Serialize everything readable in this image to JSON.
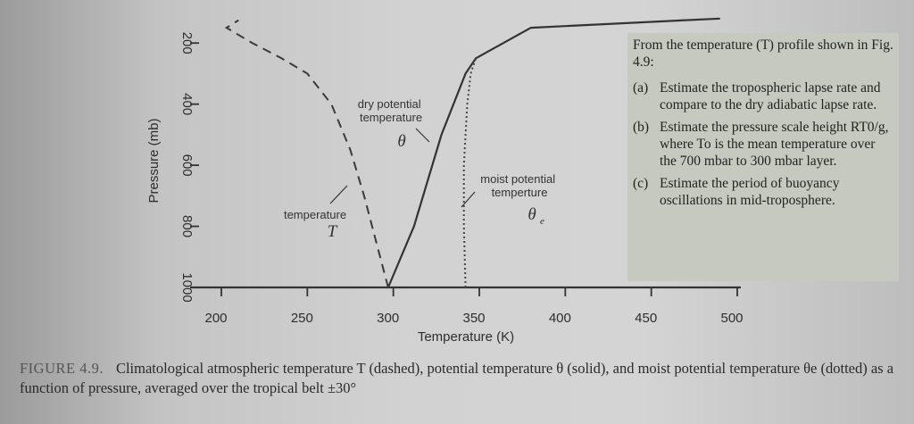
{
  "chart_data": {
    "type": "line",
    "xlabel": "Temperature (K)",
    "ylabel": "Pressure (mb)",
    "xlim": [
      200,
      500
    ],
    "ylim": [
      1000,
      100
    ],
    "x_ticks": [
      "200",
      "250",
      "300",
      "350",
      "400",
      "450",
      "500"
    ],
    "y_ticks": [
      "200",
      "400",
      "600",
      "800",
      "1000"
    ],
    "series": [
      {
        "key": "T",
        "style": "dashed",
        "x": [
          297,
          290,
          283,
          275,
          264,
          250,
          235,
          218,
          203,
          210
        ],
        "y": [
          1000,
          850,
          700,
          550,
          400,
          300,
          250,
          200,
          150,
          125
        ]
      },
      {
        "key": "theta",
        "style": "solid",
        "x": [
          297,
          312,
          328,
          342,
          348,
          380,
          470,
          490
        ],
        "y": [
          1000,
          800,
          500,
          300,
          250,
          150,
          125,
          120
        ]
      },
      {
        "key": "theta_e",
        "style": "dotted",
        "x": [
          342,
          341,
          341,
          343,
          345,
          348
        ],
        "y": [
          1000,
          800,
          600,
          400,
          300,
          250
        ]
      }
    ],
    "annotations": {
      "dry_text": "dry potential temperature",
      "dry_symbol": "θ",
      "moist_text": "moist potential temperture",
      "moist_symbol": "θ",
      "moist_sub": "e",
      "temp_text": "temperature",
      "temp_symbol": "T"
    }
  },
  "question": {
    "intro": "From the temperature (T) profile shown in Fig. 4.9:",
    "items": [
      {
        "label": "(a)",
        "text": "Estimate the tropospheric lapse rate and compare to the dry adiabatic lapse rate."
      },
      {
        "label": "(b)",
        "text": "Estimate the pressure scale height RT0/g, where To is the mean temperature over the 700 mbar to 300 mbar layer."
      },
      {
        "label": "(c)",
        "text": "Estimate the period of buoyancy oscillations in mid-troposphere."
      }
    ]
  },
  "caption": {
    "label": "FIGURE 4.9.",
    "text": "Climatological atmospheric temperature T (dashed), potential temperature θ (solid), and moist potential temperature θe (dotted) as a function of pressure, averaged over the tropical belt ±30°"
  }
}
